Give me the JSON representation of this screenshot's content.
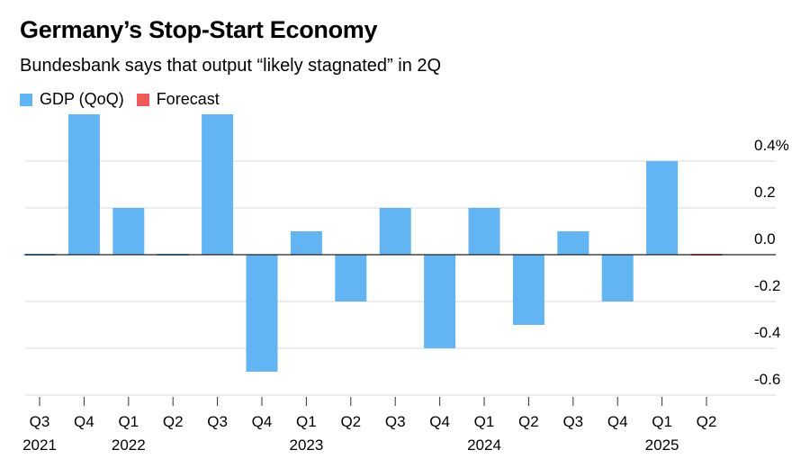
{
  "title": "Germany’s Stop-Start Economy",
  "subtitle": "Bundesbank says that output “likely stagnated” in 2Q",
  "chart_data": {
    "type": "bar",
    "categories": [
      "Q3",
      "Q4",
      "Q1",
      "Q2",
      "Q3",
      "Q4",
      "Q1",
      "Q2",
      "Q3",
      "Q4",
      "Q1",
      "Q2",
      "Q3",
      "Q4",
      "Q1",
      "Q2"
    ],
    "year_labels": [
      "2021",
      "",
      "2022",
      "",
      "",
      "",
      "2023",
      "",
      "",
      "",
      "2024",
      "",
      "",
      "",
      "2025",
      ""
    ],
    "series": [
      {
        "name": "GDP (QoQ)",
        "color": "#62b5f2",
        "values": [
          0.0,
          0.6,
          0.2,
          0.0,
          0.6,
          -0.5,
          0.1,
          -0.2,
          0.2,
          -0.4,
          0.2,
          -0.3,
          0.1,
          -0.2,
          0.4,
          null
        ]
      },
      {
        "name": "Forecast",
        "color": "#ef5b5b",
        "values": [
          null,
          null,
          null,
          null,
          null,
          null,
          null,
          null,
          null,
          null,
          null,
          null,
          null,
          null,
          null,
          0.0
        ]
      }
    ],
    "y_ticks": [
      0.4,
      0.2,
      0.0,
      -0.2,
      -0.4,
      -0.6
    ],
    "y_tick_labels": [
      "0.4%",
      "0.2",
      "0.0",
      "-0.2",
      "-0.4",
      "-0.6"
    ],
    "ylim": [
      -0.6,
      0.6
    ],
    "grid": true,
    "legend": "top-left"
  }
}
